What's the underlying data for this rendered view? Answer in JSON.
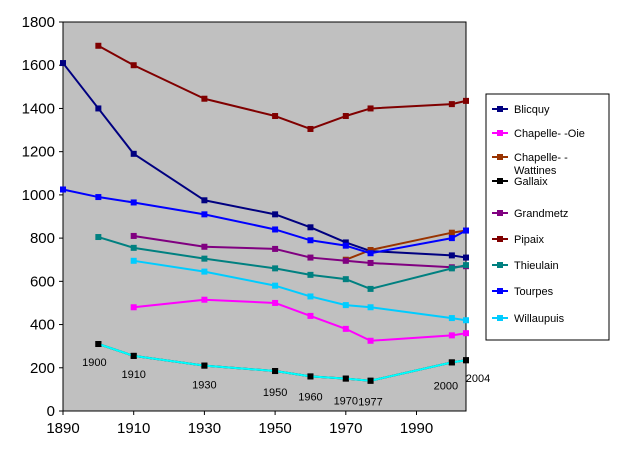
{
  "chart_data": {
    "type": "line",
    "title": "",
    "xlabel": "",
    "ylabel": "",
    "xlim": [
      1890,
      2004
    ],
    "ylim": [
      0,
      1800
    ],
    "x_ticks": [
      1890,
      1910,
      1930,
      1950,
      1970,
      1990
    ],
    "y_ticks": [
      0,
      200,
      400,
      600,
      800,
      1000,
      1200,
      1400,
      1600,
      1800
    ],
    "grid": false,
    "plot_background": "#c0c0c0",
    "legend_position": "right",
    "annotations": [
      {
        "text": "1900",
        "x": 1900
      },
      {
        "text": "1910",
        "x": 1910
      },
      {
        "text": "1930",
        "x": 1930
      },
      {
        "text": "1950",
        "x": 1950
      },
      {
        "text": "1960",
        "x": 1960
      },
      {
        "text": "1970",
        "x": 1970
      },
      {
        "text": "1977",
        "x": 1977
      },
      {
        "text": "2000",
        "x": 2000
      },
      {
        "text": "2004",
        "x": 2004
      }
    ],
    "series": [
      {
        "name": "Blicquy",
        "color": "#000080",
        "marker": "square",
        "x": [
          1890,
          1900,
          1910,
          1930,
          1950,
          1960,
          1970,
          1977,
          2000,
          2004
        ],
        "y": [
          1610,
          1400,
          1190,
          975,
          910,
          850,
          780,
          740,
          720,
          710
        ]
      },
      {
        "name": "Chapelle-   -Oie",
        "color": "#ff00ff",
        "marker": "square",
        "x": [
          1910,
          1930,
          1950,
          1960,
          1970,
          1977,
          2000,
          2004
        ],
        "y": [
          480,
          515,
          500,
          440,
          380,
          325,
          350,
          360
        ]
      },
      {
        "name": "Chapelle-   -Wattines",
        "color": "#993300",
        "marker": "square",
        "x": [
          1970,
          1977,
          2000,
          2004
        ],
        "y": [
          700,
          745,
          825,
          835
        ]
      },
      {
        "name": "Gallaix",
        "color": "#000000",
        "marker": "square",
        "x": [
          1900,
          1910,
          1930,
          1950,
          1960,
          1970,
          1977,
          2000,
          2004
        ],
        "y": [
          310,
          255,
          210,
          185,
          160,
          150,
          140,
          225,
          235
        ]
      },
      {
        "name": "Grandmetz",
        "color": "#800080",
        "marker": "square",
        "x": [
          1910,
          1930,
          1950,
          1960,
          1970,
          1977,
          2000,
          2004
        ],
        "y": [
          810,
          760,
          750,
          710,
          695,
          685,
          665,
          670
        ]
      },
      {
        "name": "Pipaix",
        "color": "#800000",
        "marker": "square",
        "x": [
          1900,
          1910,
          1930,
          1950,
          1960,
          1970,
          1977,
          2000,
          2004
        ],
        "y": [
          1690,
          1600,
          1445,
          1365,
          1305,
          1365,
          1400,
          1420,
          1435
        ]
      },
      {
        "name": "Thieulain",
        "color": "#008080",
        "marker": "square",
        "x": [
          1900,
          1910,
          1930,
          1950,
          1960,
          1970,
          1977,
          2000,
          2004
        ],
        "y": [
          805,
          755,
          705,
          660,
          630,
          610,
          565,
          660,
          675
        ]
      },
      {
        "name": "Tourpes",
        "color": "#0000ff",
        "marker": "square",
        "x": [
          1890,
          1900,
          1910,
          1930,
          1950,
          1960,
          1970,
          1977,
          2000,
          2004
        ],
        "y": [
          1025,
          990,
          965,
          910,
          840,
          790,
          765,
          730,
          800,
          835
        ]
      },
      {
        "name": "Willaupuis",
        "color": "#00ccff",
        "marker": "square",
        "x": [
          1910,
          1930,
          1950,
          1960,
          1970,
          1977,
          2000,
          2004
        ],
        "y": [
          695,
          645,
          580,
          530,
          490,
          480,
          430,
          420
        ]
      },
      {
        "name": "Gallaix-cyan",
        "color": "#00ffff",
        "marker": "none",
        "legend": false,
        "x": [
          1900,
          1910,
          1930,
          1950,
          1960,
          1970,
          1977,
          2000,
          2004
        ],
        "y": [
          310,
          255,
          210,
          185,
          160,
          150,
          140,
          225,
          235
        ]
      }
    ]
  }
}
